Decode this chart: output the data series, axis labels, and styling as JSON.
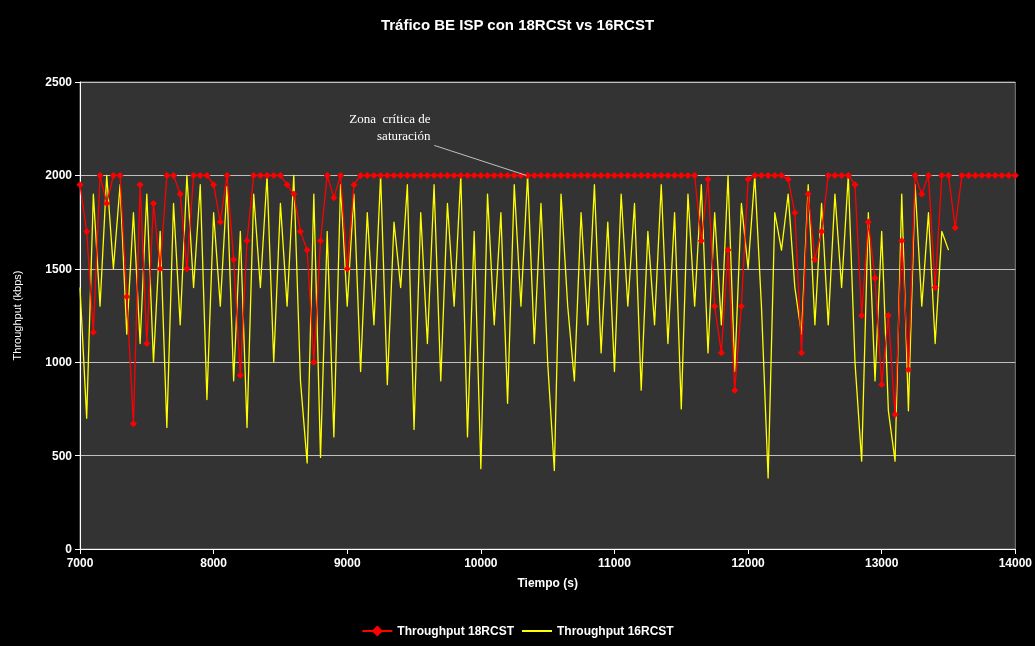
{
  "chart_data": {
    "type": "line",
    "title": "Tráfico BE ISP con 18RCSt vs 16RCST",
    "xlabel": "Tiempo (s)",
    "ylabel": "Throughput (kbps)",
    "xlim": [
      7000,
      14000
    ],
    "xticks": [
      7000,
      8000,
      9000,
      10000,
      11000,
      12000,
      13000,
      14000
    ],
    "ylim": [
      0,
      2500
    ],
    "yticks": [
      0,
      500,
      1000,
      1500,
      2000,
      2500
    ],
    "grid": "y",
    "legend": "bottom",
    "annotations": [
      {
        "text": "Zona  crítica de\nsaturación",
        "x": 10340,
        "y": 2000
      }
    ],
    "series": [
      {
        "name": "Throughput 18RCST",
        "color": "#ff0000",
        "marker": "diamond",
        "x": [
          7000,
          7050,
          7100,
          7150,
          7200,
          7250,
          7300,
          7350,
          7400,
          7450,
          7500,
          7550,
          7600,
          7650,
          7700,
          7750,
          7800,
          7850,
          7900,
          7950,
          8000,
          8050,
          8100,
          8150,
          8200,
          8250,
          8300,
          8350,
          8400,
          8450,
          8500,
          8550,
          8600,
          8650,
          8700,
          8750,
          8800,
          8850,
          8900,
          8950,
          9000,
          9050,
          9100,
          9150,
          9200,
          9250,
          9300,
          9350,
          9400,
          9450,
          9500,
          9550,
          9600,
          9650,
          9700,
          9750,
          9800,
          9850,
          9900,
          9950,
          10000,
          10050,
          10100,
          10150,
          10200,
          10250,
          10300,
          10350,
          10400,
          10450,
          10500,
          10550,
          10600,
          10650,
          10700,
          10750,
          10800,
          10850,
          10900,
          10950,
          11000,
          11050,
          11100,
          11150,
          11200,
          11250,
          11300,
          11350,
          11400,
          11450,
          11500,
          11550,
          11600,
          11650,
          11700,
          11750,
          11800,
          11850,
          11900,
          11950,
          12000,
          12050,
          12100,
          12150,
          12200,
          12250,
          12300,
          12350,
          12400,
          12450,
          12500,
          12550,
          12600,
          12650,
          12700,
          12750,
          12800,
          12850,
          12900,
          12950,
          13000,
          13050,
          13100,
          13150,
          13200,
          13250,
          13300,
          13350,
          13400,
          13450,
          13500,
          13550,
          13600,
          13650,
          13700,
          13750,
          13800,
          13850,
          13900,
          13950,
          14000
        ],
        "values": [
          1950,
          1700,
          1160,
          2000,
          1850,
          2000,
          2000,
          1350,
          670,
          1950,
          1100,
          1850,
          1500,
          2000,
          2000,
          1900,
          1500,
          2000,
          2000,
          2000,
          1950,
          1750,
          2000,
          1550,
          930,
          1650,
          2000,
          2000,
          2000,
          2000,
          2000,
          1950,
          1900,
          1700,
          1600,
          1000,
          1650,
          2000,
          1880,
          2000,
          1500,
          1950,
          2000,
          2000,
          2000,
          2000,
          2000,
          2000,
          2000,
          2000,
          2000,
          2000,
          2000,
          2000,
          2000,
          2000,
          2000,
          2000,
          2000,
          2000,
          2000,
          2000,
          2000,
          2000,
          2000,
          2000,
          2000,
          2000,
          2000,
          2000,
          2000,
          2000,
          2000,
          2000,
          2000,
          2000,
          2000,
          2000,
          2000,
          2000,
          2000,
          2000,
          2000,
          2000,
          2000,
          2000,
          2000,
          2000,
          2000,
          2000,
          2000,
          2000,
          2000,
          1650,
          1980,
          1300,
          1050,
          1600,
          850,
          1300,
          1980,
          2000,
          2000,
          2000,
          2000,
          2000,
          1980,
          1800,
          1050,
          1900,
          1550,
          1700,
          2000,
          2000,
          2000,
          2000,
          1950,
          1250,
          1750,
          1450,
          880,
          1250,
          720,
          1650,
          960,
          2000,
          1900,
          2000,
          1400,
          2000,
          2000,
          1720,
          2000,
          2000,
          2000,
          2000,
          2000,
          2000,
          2000,
          2000,
          2000
        ]
      },
      {
        "name": "Throughput 16RCST",
        "color": "#ffff00",
        "marker": "none",
        "x": [
          7000,
          7050,
          7100,
          7150,
          7200,
          7250,
          7300,
          7350,
          7400,
          7450,
          7500,
          7550,
          7600,
          7650,
          7700,
          7750,
          7800,
          7850,
          7900,
          7950,
          8000,
          8050,
          8100,
          8150,
          8200,
          8250,
          8300,
          8350,
          8400,
          8450,
          8500,
          8550,
          8600,
          8650,
          8700,
          8750,
          8800,
          8850,
          8900,
          8950,
          9000,
          9050,
          9100,
          9150,
          9200,
          9250,
          9300,
          9350,
          9400,
          9450,
          9500,
          9550,
          9600,
          9650,
          9700,
          9750,
          9800,
          9850,
          9900,
          9950,
          10000,
          10050,
          10100,
          10150,
          10200,
          10250,
          10300,
          10350,
          10400,
          10450,
          10500,
          10550,
          10600,
          10650,
          10700,
          10750,
          10800,
          10850,
          10900,
          10950,
          11000,
          11050,
          11100,
          11150,
          11200,
          11250,
          11300,
          11350,
          11400,
          11450,
          11500,
          11550,
          11600,
          11650,
          11700,
          11750,
          11800,
          11850,
          11900,
          11950,
          12000,
          12050,
          12100,
          12150,
          12200,
          12250,
          12300,
          12350,
          12400,
          12450,
          12500,
          12550,
          12600,
          12650,
          12700,
          12750,
          12800,
          12850,
          12900,
          12950,
          13000,
          13050,
          13100,
          13150,
          13200,
          13250,
          13300,
          13350,
          13400,
          13450,
          13500
        ],
        "values": [
          1400,
          700,
          1900,
          1300,
          2000,
          1500,
          1950,
          1150,
          1800,
          1100,
          1900,
          1000,
          1700,
          650,
          1850,
          1200,
          2000,
          1400,
          1950,
          800,
          1800,
          1300,
          1940,
          900,
          1700,
          650,
          1900,
          1400,
          2000,
          1000,
          1850,
          1300,
          2000,
          900,
          460,
          1900,
          490,
          1700,
          600,
          1950,
          1300,
          1900,
          950,
          1800,
          1200,
          2000,
          880,
          1750,
          1400,
          1950,
          640,
          1800,
          1100,
          1950,
          900,
          1850,
          1300,
          2000,
          600,
          1700,
          430,
          1900,
          1200,
          1800,
          780,
          1950,
          1300,
          2000,
          1100,
          1850,
          1000,
          420,
          1900,
          1300,
          900,
          1800,
          1200,
          1950,
          1050,
          1750,
          950,
          1900,
          1300,
          1850,
          850,
          1700,
          1200,
          1950,
          1100,
          1800,
          750,
          1900,
          1300,
          1950,
          1050,
          1800,
          1200,
          2000,
          950,
          1850,
          1500,
          2000,
          1300,
          380,
          1800,
          1600,
          1900,
          1400,
          1150,
          1950,
          1200,
          1850,
          1200,
          1900,
          1400,
          2000,
          1000,
          470,
          1800,
          900,
          1700,
          740,
          470,
          1900,
          740,
          1950,
          1300,
          1800,
          1100,
          1700,
          1600
        ]
      }
    ]
  }
}
